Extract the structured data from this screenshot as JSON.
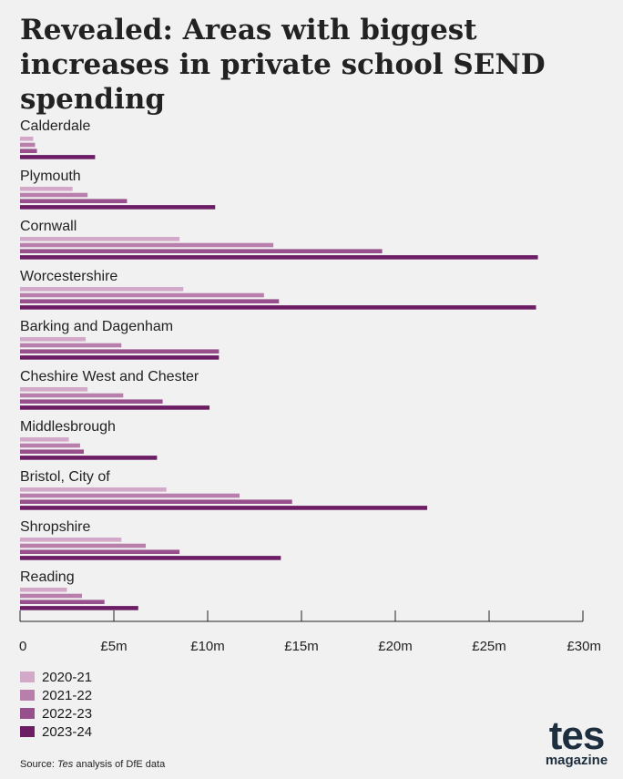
{
  "title": "Revealed: Areas with biggest increases in private school SEND spending",
  "source_prefix": "Source: ",
  "source_italic": "Tes",
  "source_suffix": " analysis of DfE data",
  "logo": {
    "main": "tes",
    "sub": "magazine"
  },
  "colors": {
    "2020-21": "#d3a9c9",
    "2021-22": "#b87fad",
    "2022-23": "#97508c",
    "2023-24": "#6d1d64"
  },
  "chart_data": {
    "type": "bar",
    "orientation": "horizontal",
    "categories": [
      "Calderdale",
      "Plymouth",
      "Cornwall",
      "Worcestershire",
      "Barking and Dagenham",
      "Cheshire West and Chester",
      "Middlesbrough",
      "Bristol, City of",
      "Shropshire",
      "Reading"
    ],
    "series": [
      {
        "name": "2020-21",
        "values": [
          0.7,
          2.8,
          8.5,
          8.7,
          3.5,
          3.6,
          2.6,
          7.8,
          5.4,
          2.5
        ]
      },
      {
        "name": "2021-22",
        "values": [
          0.8,
          3.6,
          13.5,
          13.0,
          5.4,
          5.5,
          3.2,
          11.7,
          6.7,
          3.3
        ]
      },
      {
        "name": "2022-23",
        "values": [
          0.9,
          5.7,
          19.3,
          13.8,
          10.6,
          7.6,
          3.4,
          14.5,
          8.5,
          4.5
        ]
      },
      {
        "name": "2023-24",
        "values": [
          4.0,
          10.4,
          27.6,
          27.5,
          10.6,
          10.1,
          7.3,
          21.7,
          13.9,
          6.3
        ]
      }
    ],
    "x_ticks": [
      "0",
      "£5m",
      "£10m",
      "£15m",
      "£20m",
      "£25m",
      "£30m"
    ],
    "xlim": [
      0,
      30
    ],
    "legend": "bottom-left",
    "grid": false
  }
}
